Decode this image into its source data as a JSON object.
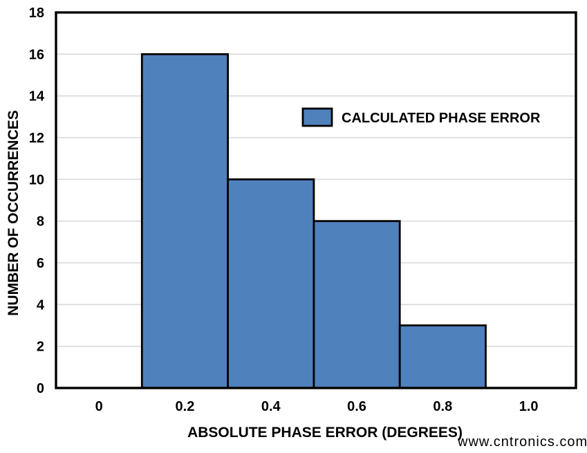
{
  "watermark": {
    "text": "www.cntronics.com",
    "color": "#a6dba6"
  },
  "chart_data": {
    "type": "bar",
    "title": "",
    "xlabel": "ABSOLUTE PHASE ERROR (DEGREES)",
    "ylabel": "NUMBER OF OCCURRENCES",
    "legend_label": "CALCULATED PHASE ERROR",
    "legend_position": "inside-upper-right",
    "bar_fill": "#4f81bd",
    "bar_border": "#000000",
    "grid": "horizontal",
    "grid_color": "#d9d9d9",
    "frame_color": "#000000",
    "bins": [
      {
        "start": 0.1,
        "end": 0.3,
        "count": 16
      },
      {
        "start": 0.3,
        "end": 0.5,
        "count": 10
      },
      {
        "start": 0.5,
        "end": 0.7,
        "count": 8
      },
      {
        "start": 0.7,
        "end": 0.9,
        "count": 3
      }
    ],
    "x_ticks": [
      0,
      0.2,
      0.4,
      0.6,
      0.8,
      1.0
    ],
    "x_tick_labels": [
      "0",
      "0.2",
      "0.4",
      "0.6",
      "0.8",
      "1.0"
    ],
    "y_ticks": [
      0,
      2,
      4,
      6,
      8,
      10,
      12,
      14,
      16,
      18
    ],
    "xlim": [
      -0.1,
      1.11
    ],
    "ylim": [
      0,
      18
    ]
  }
}
